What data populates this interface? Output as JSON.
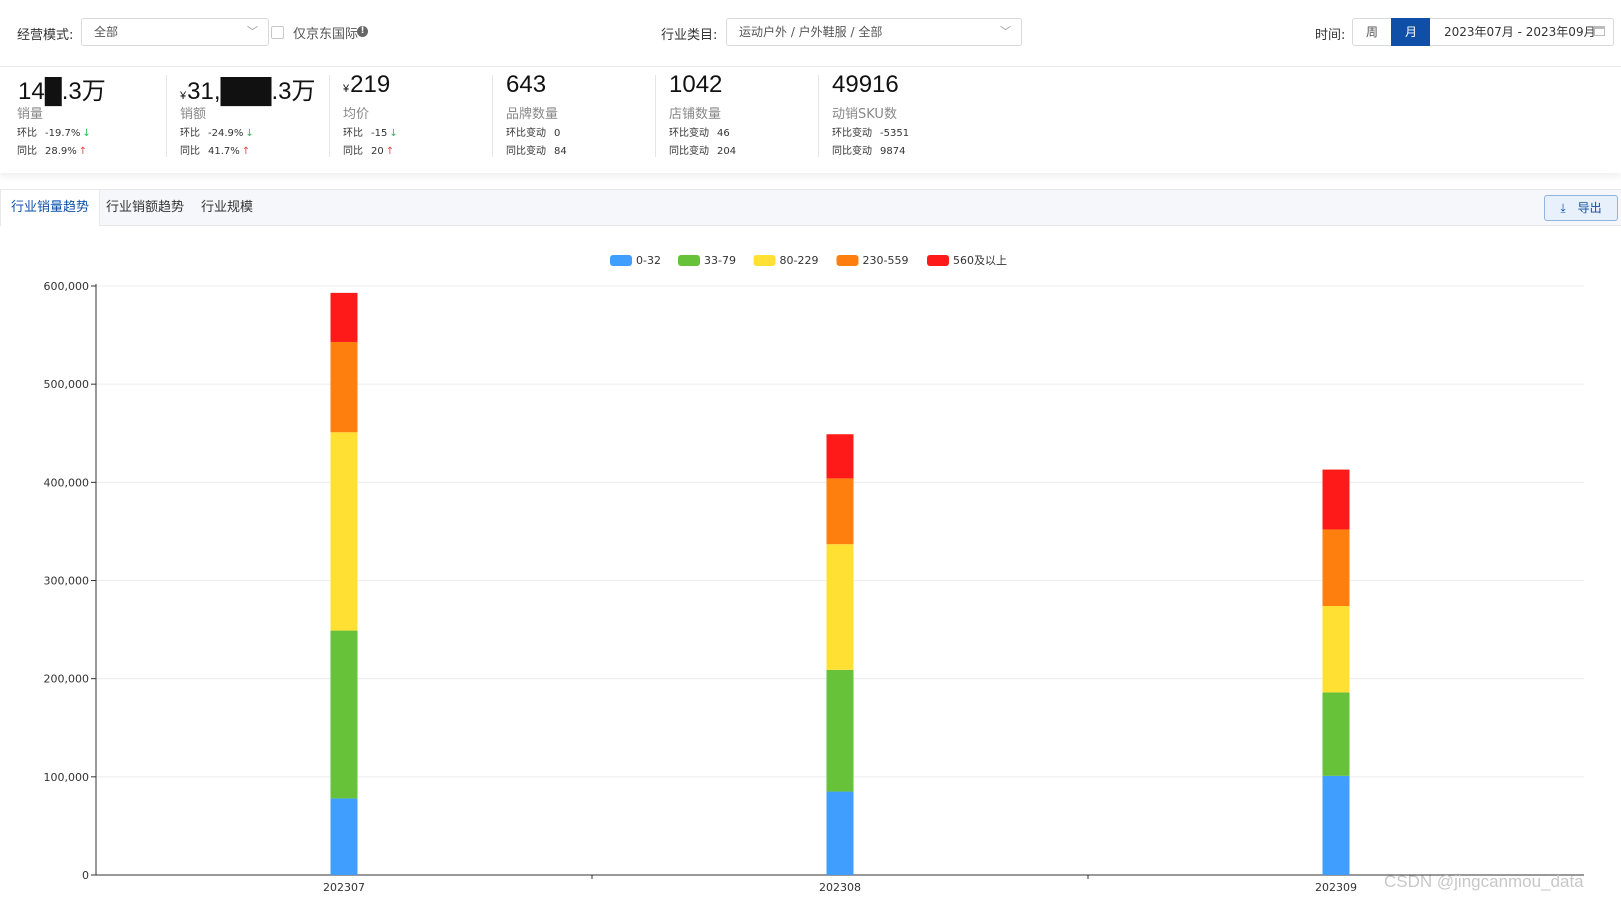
{
  "filters": {
    "mode_label": "经营模式:",
    "mode_value": "全部",
    "jd_intl_label": "仅京东国际",
    "category_label": "行业类目:",
    "category_value": "运动户外 / 户外鞋服 / 全部",
    "time_label": "时间:",
    "week_label": "周",
    "month_label": "月",
    "date_range": "2023年07月 - 2023年09月"
  },
  "metrics": [
    {
      "currency": "",
      "value": "14█.3万",
      "name": "销量",
      "row1_label": "环比",
      "row1_value": "-19.7%",
      "row1_dir": "down",
      "row2_label": "同比",
      "row2_value": "28.9%",
      "row2_dir": "up"
    },
    {
      "currency": "¥",
      "value": "31,███.3万",
      "name": "销额",
      "row1_label": "环比",
      "row1_value": "-24.9%",
      "row1_dir": "down",
      "row2_label": "同比",
      "row2_value": "41.7%",
      "row2_dir": "up"
    },
    {
      "currency": "¥",
      "value": "219",
      "name": "均价",
      "row1_label": "环比",
      "row1_value": "-15",
      "row1_dir": "down",
      "row2_label": "同比",
      "row2_value": "20",
      "row2_dir": "up"
    },
    {
      "currency": "",
      "value": "643",
      "name": "品牌数量",
      "row1_label": "环比变动",
      "row1_value": "0",
      "row1_dir": "",
      "row2_label": "同比变动",
      "row2_value": "84",
      "row2_dir": ""
    },
    {
      "currency": "",
      "value": "1042",
      "name": "店铺数量",
      "row1_label": "环比变动",
      "row1_value": "46",
      "row1_dir": "",
      "row2_label": "同比变动",
      "row2_value": "204",
      "row2_dir": ""
    },
    {
      "currency": "",
      "value": "49916",
      "name": "动销SKU数",
      "row1_label": "环比变动",
      "row1_value": "-5351",
      "row1_dir": "",
      "row2_label": "同比变动",
      "row2_value": "9874",
      "row2_dir": ""
    }
  ],
  "tabs": [
    {
      "label": "行业销量趋势",
      "active": true
    },
    {
      "label": "行业销额趋势",
      "active": false
    },
    {
      "label": "行业规模",
      "active": false
    }
  ],
  "export_label": "导出",
  "icons": {
    "export": "download-icon",
    "calendar": "calendar-icon",
    "dropdown": "chevron-down-icon",
    "info": "info-icon"
  },
  "colors": {
    "accent": "#0f4fa8",
    "up": "#e84545",
    "down": "#2eb85c"
  },
  "chart_data": {
    "type": "bar",
    "stacked": true,
    "categories": [
      "202307",
      "202308",
      "202309"
    ],
    "series": [
      {
        "name": "0-32",
        "color": "#409eff",
        "values": [
          78000,
          85000,
          101000
        ]
      },
      {
        "name": "33-79",
        "color": "#67c23a",
        "values": [
          171000,
          124000,
          85000
        ]
      },
      {
        "name": "80-229",
        "color": "#ffe033",
        "values": [
          202000,
          128000,
          88000
        ]
      },
      {
        "name": "230-559",
        "color": "#ff7f0e",
        "values": [
          92000,
          67000,
          78000
        ]
      },
      {
        "name": "560及以上",
        "color": "#ff1a1a",
        "values": [
          50000,
          45000,
          61000
        ]
      }
    ],
    "yticks": [
      "0",
      "100,000",
      "200,000",
      "300,000",
      "400,000",
      "500,000",
      "600,000"
    ],
    "ylim": [
      0,
      600000
    ],
    "grid": true,
    "legend_position": "top-center"
  },
  "watermark": "CSDN @jingcanmou_data"
}
